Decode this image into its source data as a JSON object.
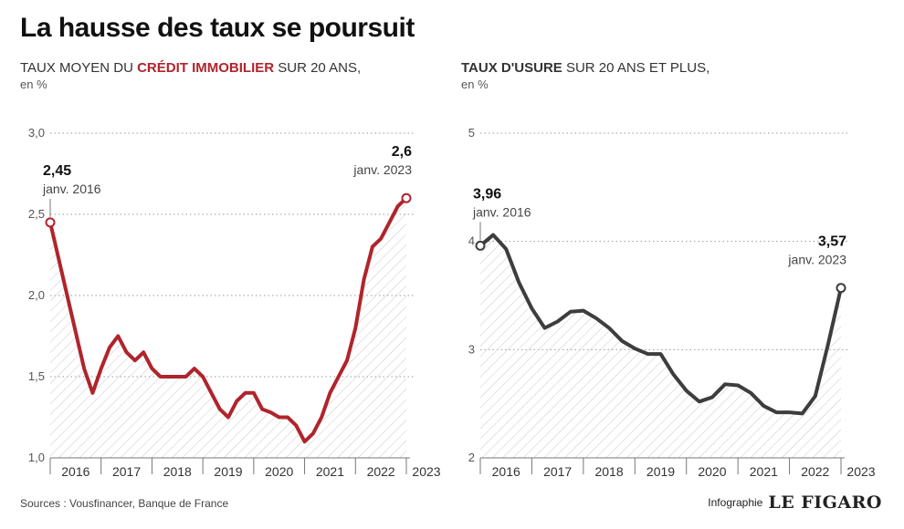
{
  "title": "La hausse des taux se poursuit",
  "sources": "Sources : Vousfinancer, Banque de  France",
  "credit": {
    "prefix": "Infographie",
    "brand": "LE FIGARO"
  },
  "colors": {
    "left_series": "#b0242c",
    "right_series": "#3d3d3d"
  },
  "chart_data": [
    {
      "type": "line",
      "subtitle": {
        "before": "TAUX MOYEN DU ",
        "highlight": "CRÉDIT IMMOBILIER",
        "after": " SUR 20 ANS,",
        "unit": "en %"
      },
      "ylim": [
        1.0,
        3.0
      ],
      "yticks": [
        "1,0",
        "1,5",
        "2,0",
        "2,5",
        "3,0"
      ],
      "xticks": [
        "2016",
        "2017",
        "2018",
        "2019",
        "2020",
        "2021",
        "2022",
        "2023"
      ],
      "series": [
        {
          "x": [
            "2016-01",
            "2016-05",
            "2016-09",
            "2016-11",
            "2017-01",
            "2017-03",
            "2017-05",
            "2017-07",
            "2017-09",
            "2017-11",
            "2018-01",
            "2018-03",
            "2018-05",
            "2018-07",
            "2018-09",
            "2018-11",
            "2019-01",
            "2019-03",
            "2019-05",
            "2019-07",
            "2019-09",
            "2019-11",
            "2020-01",
            "2020-03",
            "2020-05",
            "2020-07",
            "2020-09",
            "2020-11",
            "2021-01",
            "2021-03",
            "2021-05",
            "2021-07",
            "2021-09",
            "2021-11",
            "2022-01",
            "2022-03",
            "2022-05",
            "2022-07",
            "2022-09",
            "2022-11",
            "2023-01"
          ],
          "y": [
            2.45,
            2.0,
            1.55,
            1.4,
            1.55,
            1.68,
            1.75,
            1.65,
            1.6,
            1.65,
            1.55,
            1.5,
            1.5,
            1.5,
            1.5,
            1.55,
            1.5,
            1.4,
            1.3,
            1.25,
            1.35,
            1.4,
            1.4,
            1.3,
            1.28,
            1.25,
            1.25,
            1.2,
            1.1,
            1.15,
            1.25,
            1.4,
            1.5,
            1.6,
            1.8,
            2.1,
            2.3,
            2.35,
            2.45,
            2.55,
            2.6
          ]
        }
      ],
      "annotations": [
        {
          "value": "2,45",
          "date": "janv. 2016"
        },
        {
          "value": "2,6",
          "date": "janv. 2023"
        }
      ]
    },
    {
      "type": "line",
      "subtitle": {
        "before": "",
        "highlight": "TAUX D'USURE",
        "after": " SUR 20 ANS ET PLUS,",
        "unit": "en %"
      },
      "ylim": [
        2,
        5
      ],
      "yticks": [
        "2",
        "3",
        "4",
        "5"
      ],
      "xticks": [
        "2016",
        "2017",
        "2018",
        "2019",
        "2020",
        "2021",
        "2022",
        "2023"
      ],
      "series": [
        {
          "x": [
            "2016-01",
            "2016-04",
            "2016-07",
            "2016-10",
            "2017-01",
            "2017-04",
            "2017-07",
            "2017-10",
            "2018-01",
            "2018-04",
            "2018-07",
            "2018-10",
            "2019-01",
            "2019-04",
            "2019-07",
            "2019-10",
            "2020-01",
            "2020-04",
            "2020-07",
            "2020-10",
            "2021-01",
            "2021-04",
            "2021-07",
            "2021-10",
            "2022-01",
            "2022-04",
            "2022-07",
            "2022-10",
            "2023-01"
          ],
          "y": [
            3.96,
            4.06,
            3.93,
            3.62,
            3.38,
            3.2,
            3.26,
            3.35,
            3.36,
            3.29,
            3.2,
            3.08,
            3.01,
            2.96,
            2.96,
            2.77,
            2.62,
            2.52,
            2.56,
            2.68,
            2.67,
            2.6,
            2.48,
            2.42,
            2.42,
            2.41,
            2.57,
            3.05,
            3.57
          ]
        }
      ],
      "annotations": [
        {
          "value": "3,96",
          "date": "janv. 2016"
        },
        {
          "value": "3,57",
          "date": "janv. 2023"
        }
      ]
    }
  ]
}
